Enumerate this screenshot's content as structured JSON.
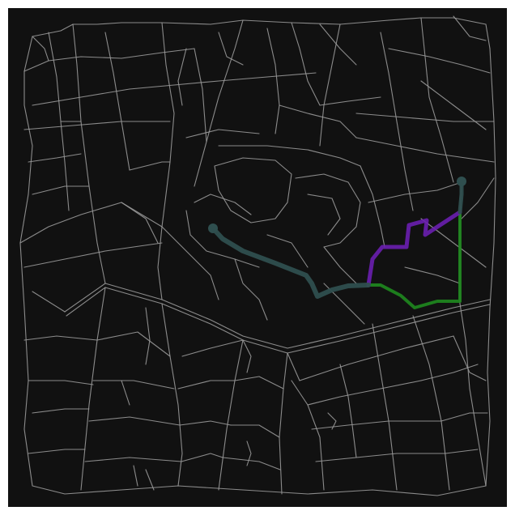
{
  "map": {
    "background": "#111111",
    "road_color": "#999999",
    "routes": [
      {
        "id": "route-teal",
        "color": "#2f4f4f",
        "opacity": 0.95
      },
      {
        "id": "route-purple",
        "color": "#6a1fb0",
        "opacity": 0.9
      },
      {
        "id": "route-green",
        "color": "#1f8a1f",
        "opacity": 0.9
      }
    ],
    "markers": [
      {
        "id": "origin-marker",
        "color": "#2f4f4f"
      },
      {
        "id": "destination-marker",
        "color": "#2f4f4f"
      }
    ]
  }
}
